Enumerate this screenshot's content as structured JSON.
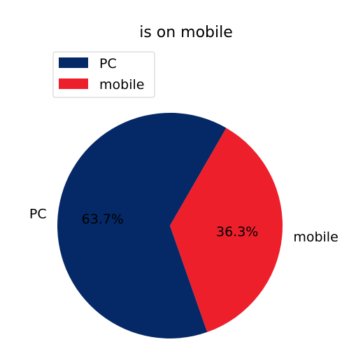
{
  "chart_data": {
    "type": "pie",
    "title": "is on mobile",
    "categories": [
      "PC",
      "mobile"
    ],
    "values": [
      63.7,
      36.3
    ],
    "percent_labels": [
      "63.7%",
      "36.3%"
    ],
    "colors": [
      "#042966",
      "#ed1f2b"
    ],
    "legend": {
      "position": "top-left",
      "entries": [
        "PC",
        "mobile"
      ]
    },
    "start_angle_deg": 60,
    "direction": "counterclockwise"
  }
}
